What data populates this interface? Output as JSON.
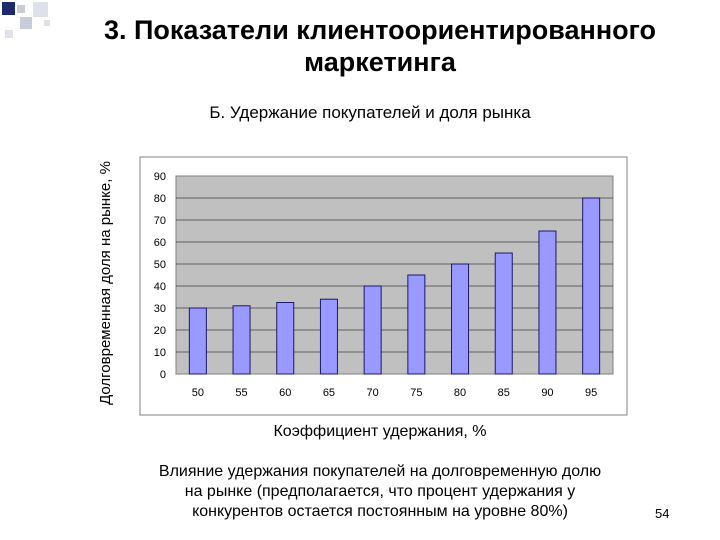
{
  "slide": {
    "title_line1": "3. Показатели клиентоориентированного",
    "title_line2": "маркетинга",
    "caption_line1": "Влияние удержания покупателей на долговременную долю",
    "caption_line2": "на рынке (предполагается, что процент удержания у",
    "caption_line3": "конкурентов остается постоянным на уровне 80%)",
    "page_number": "54",
    "colors": {
      "deco_dark": "#1f2a6b",
      "deco_light": "#c8cbd8",
      "plot_bg": "#c0c0c0",
      "bar_fill": "#9999ff",
      "bar_stroke": "#1a1a66"
    }
  },
  "chart_data": {
    "type": "bar",
    "title": "Б. Удержание покупателей и доля рынка",
    "xlabel": "Коэффициент удержания, %",
    "ylabel": "Долговременная доля на рынке, %",
    "categories": [
      "50",
      "55",
      "60",
      "65",
      "70",
      "75",
      "80",
      "85",
      "90",
      "95"
    ],
    "values": [
      30,
      31,
      32.5,
      34,
      40,
      45,
      50,
      55,
      65,
      80
    ],
    "ylim": [
      0,
      90
    ],
    "yticks": [
      "0",
      "10",
      "20",
      "30",
      "40",
      "50",
      "60",
      "70",
      "80",
      "90"
    ],
    "grid": true,
    "legend": "none"
  }
}
